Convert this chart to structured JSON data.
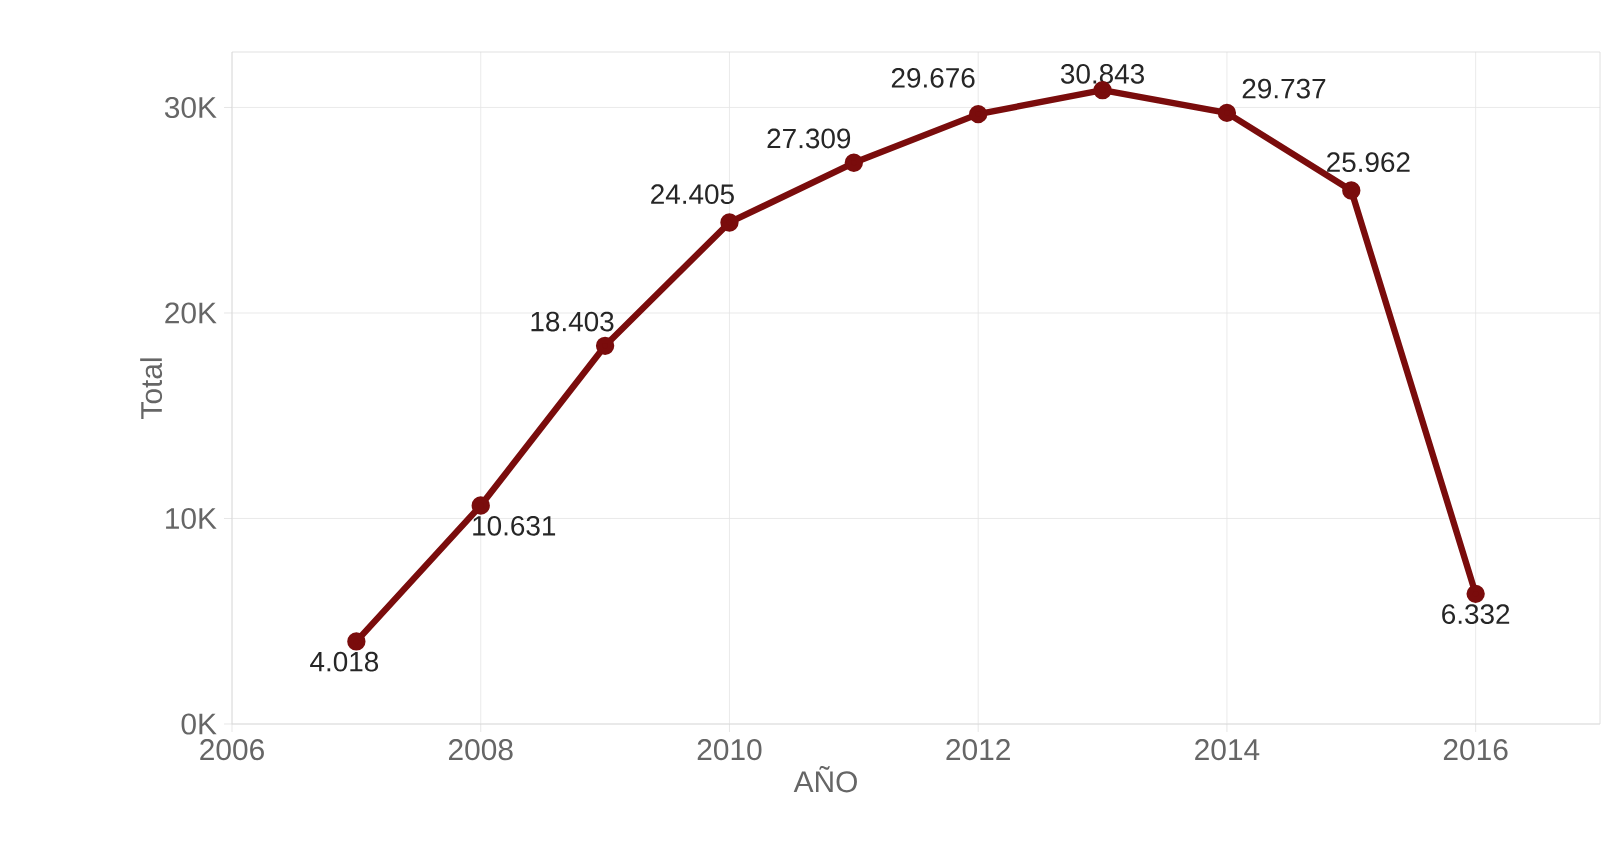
{
  "chart_data": {
    "type": "line",
    "xlabel": "AÑO",
    "ylabel": "Total",
    "x": [
      2007,
      2008,
      2009,
      2010,
      2011,
      2012,
      2013,
      2014,
      2015,
      2016
    ],
    "series": [
      {
        "color": "#7a0c0c",
        "values": [
          4018,
          10631,
          18403,
          24405,
          27309,
          29676,
          30843,
          29737,
          25962,
          6332
        ],
        "value_labels": [
          "4.018",
          "10.631",
          "18.403",
          "24.405",
          "27.309",
          "29.676",
          "30.843",
          "29.737",
          "25.962",
          "6.332"
        ]
      }
    ],
    "xlim": [
      2006,
      2017
    ],
    "ylim": [
      0,
      32700
    ],
    "xticks": [
      2006,
      2008,
      2010,
      2012,
      2014,
      2016
    ],
    "yticks": [
      {
        "value": 0,
        "label": "0K"
      },
      {
        "value": 10000,
        "label": "10K"
      },
      {
        "value": 20000,
        "label": "20K"
      },
      {
        "value": 30000,
        "label": "30K"
      }
    ],
    "grid": true,
    "marker": "circle",
    "line_style": "solid"
  }
}
